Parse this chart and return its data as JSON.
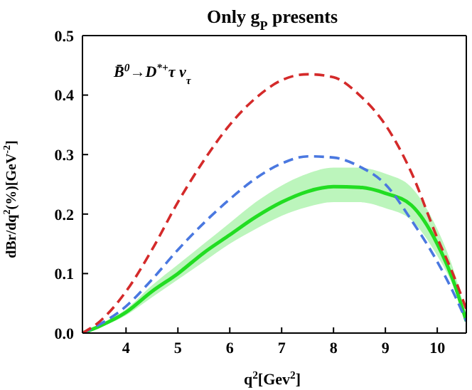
{
  "chart_data": {
    "type": "line",
    "title": "Only g$_{P}$ presents",
    "xlabel": "q$^{2}$[Gev$^{2}$]",
    "ylabel": "dBr/dq$^{2}$(%)[GeV$^{-2}$]",
    "annotations": [
      "B̄$^{0}$→D$^{*+}$τ ν$_{τ}$"
    ],
    "x": [
      3.16,
      3.5,
      4,
      4.5,
      5,
      5.5,
      6,
      6.5,
      7,
      7.5,
      8,
      8.5,
      9,
      9.5,
      10,
      10.3,
      10.56
    ],
    "series": [
      {
        "color": "#d42a2a",
        "line_style": "dashed",
        "values": [
          0,
          0.02,
          0.07,
          0.14,
          0.22,
          0.29,
          0.35,
          0.395,
          0.425,
          0.435,
          0.43,
          0.4,
          0.35,
          0.27,
          0.16,
          0.1,
          0.04
        ]
      },
      {
        "color": "#4a78e0",
        "line_style": "dashed",
        "values": [
          0,
          0.015,
          0.045,
          0.09,
          0.14,
          0.185,
          0.225,
          0.26,
          0.285,
          0.297,
          0.295,
          0.28,
          0.25,
          0.19,
          0.12,
          0.07,
          0.02
        ]
      },
      {
        "color": "#22dd22",
        "line_style": "solid",
        "values": [
          0,
          0.012,
          0.035,
          0.07,
          0.1,
          0.135,
          0.165,
          0.195,
          0.22,
          0.238,
          0.246,
          0.245,
          0.235,
          0.215,
          0.15,
          0.09,
          0.02
        ],
        "lower": [
          0,
          0.01,
          0.03,
          0.06,
          0.09,
          0.12,
          0.15,
          0.175,
          0.197,
          0.212,
          0.22,
          0.22,
          0.21,
          0.19,
          0.13,
          0.08,
          0.015
        ],
        "upper": [
          0,
          0.015,
          0.04,
          0.08,
          0.115,
          0.15,
          0.185,
          0.22,
          0.248,
          0.268,
          0.278,
          0.278,
          0.268,
          0.245,
          0.175,
          0.11,
          0.03
        ]
      }
    ],
    "xlim": [
      3.16,
      10.56
    ],
    "ylim": [
      0,
      0.5
    ],
    "xticks": [
      4,
      5,
      6,
      7,
      8,
      9,
      10
    ],
    "yticks": [
      {
        "value": 0,
        "label": "0.0"
      },
      {
        "value": 0.1,
        "label": "0.1"
      },
      {
        "value": 0.2,
        "label": "0.2"
      },
      {
        "value": 0.3,
        "label": "0.3"
      },
      {
        "value": 0.4,
        "label": "0.4"
      },
      {
        "value": 0.5,
        "label": "0.5"
      }
    ],
    "grid": false,
    "legend": false
  }
}
